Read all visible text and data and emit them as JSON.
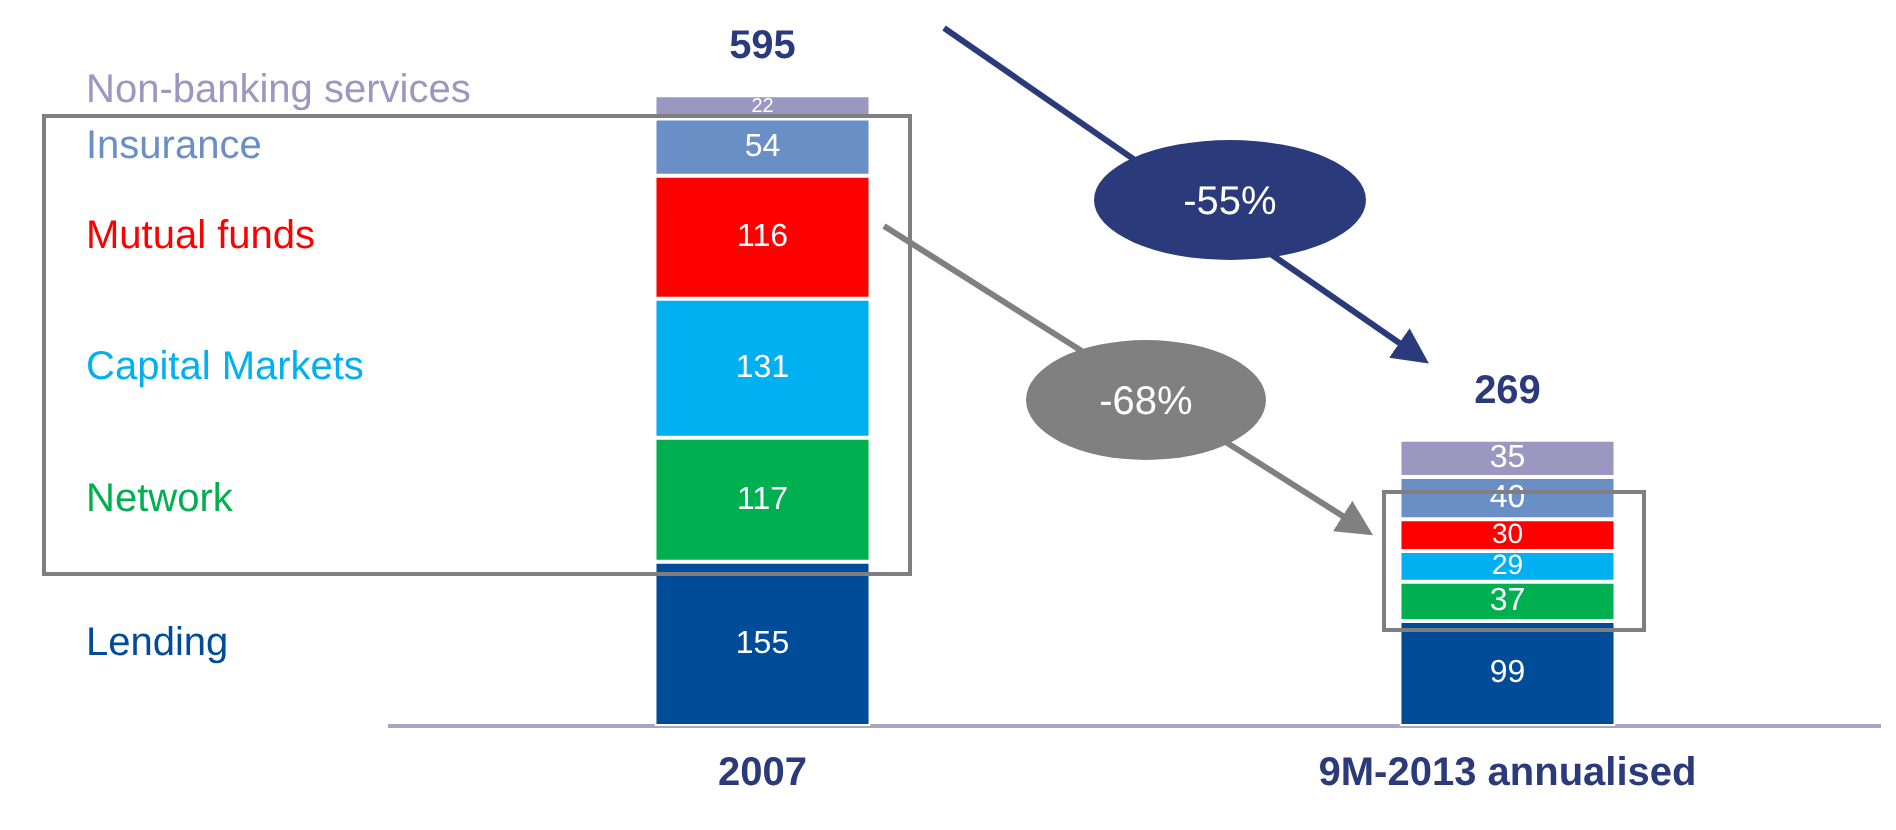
{
  "chart_data": {
    "type": "bar",
    "stacked": true,
    "categories": [
      "2007",
      "9M-2013 annualised"
    ],
    "series": [
      {
        "name": "Lending",
        "color": "#004c99",
        "values": [
          155,
          99
        ]
      },
      {
        "name": "Network",
        "color": "#00b050",
        "values": [
          117,
          37
        ]
      },
      {
        "name": "Capital Markets",
        "color": "#00b0f0",
        "values": [
          131,
          29
        ]
      },
      {
        "name": "Mutual funds",
        "color": "#ff0000",
        "values": [
          116,
          30
        ]
      },
      {
        "name": "Insurance",
        "color": "#6a8fc7",
        "values": [
          54,
          40
        ]
      },
      {
        "name": "Non-banking services",
        "color": "#9b97c0",
        "values": [
          22,
          35
        ]
      }
    ],
    "data_labels": true,
    "totals": [
      "595",
      "269"
    ],
    "annotations": [
      "-55%",
      "-68%"
    ],
    "grid": false
  }
}
